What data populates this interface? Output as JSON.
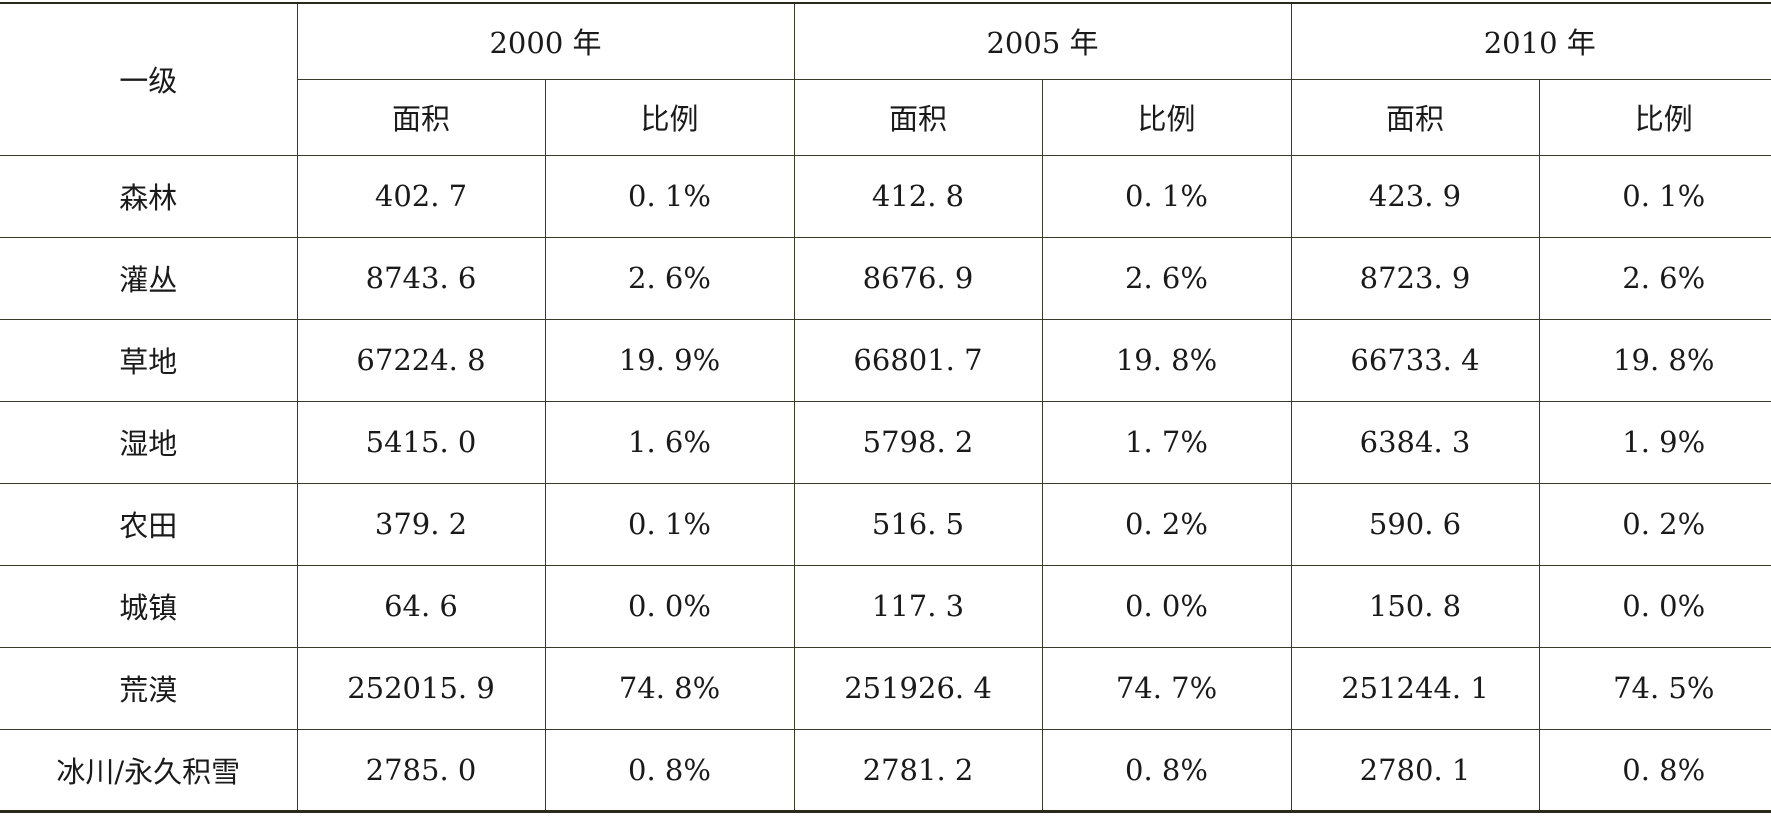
{
  "table": {
    "corner_header": "一级",
    "years": [
      "2000 年",
      "2005 年",
      "2010 年"
    ],
    "sub_headers": [
      "面积",
      "比例"
    ],
    "rows": [
      {
        "name": "森林",
        "values": [
          "402. 7",
          "0. 1%",
          "412. 8",
          "0. 1%",
          "423. 9",
          "0. 1%"
        ]
      },
      {
        "name": "灌丛",
        "values": [
          "8743. 6",
          "2. 6%",
          "8676. 9",
          "2. 6%",
          "8723. 9",
          "2. 6%"
        ]
      },
      {
        "name": "草地",
        "values": [
          "67224. 8",
          "19. 9%",
          "66801. 7",
          "19. 8%",
          "66733. 4",
          "19. 8%"
        ]
      },
      {
        "name": "湿地",
        "values": [
          "5415. 0",
          "1. 6%",
          "5798. 2",
          "1. 7%",
          "6384. 3",
          "1. 9%"
        ]
      },
      {
        "name": "农田",
        "values": [
          "379. 2",
          "0. 1%",
          "516. 5",
          "0. 2%",
          "590. 6",
          "0. 2%"
        ]
      },
      {
        "name": "城镇",
        "values": [
          "64. 6",
          "0. 0%",
          "117. 3",
          "0. 0%",
          "150. 8",
          "0. 0%"
        ]
      },
      {
        "name": "荒漠",
        "values": [
          "252015. 9",
          "74. 8%",
          "251926. 4",
          "74. 7%",
          "251244. 1",
          "74. 5%"
        ]
      },
      {
        "name": "冰川/永久积雪",
        "values": [
          "2785. 0",
          "0. 8%",
          "2781. 2",
          "0. 8%",
          "2780. 1",
          "0. 8%"
        ]
      }
    ]
  }
}
